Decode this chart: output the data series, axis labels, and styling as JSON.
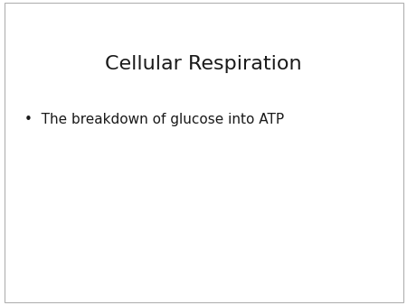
{
  "title": "Cellular Respiration",
  "title_fontsize": 16,
  "title_color": "#1a1a1a",
  "bullet_text": "The breakdown of glucose into ATP",
  "bullet_fontsize": 11,
  "bullet_color": "#1a1a1a",
  "bullet_symbol": "•",
  "background_color": "#ffffff",
  "border_color": "#b0b0b0",
  "font_family": "DejaVu Sans"
}
